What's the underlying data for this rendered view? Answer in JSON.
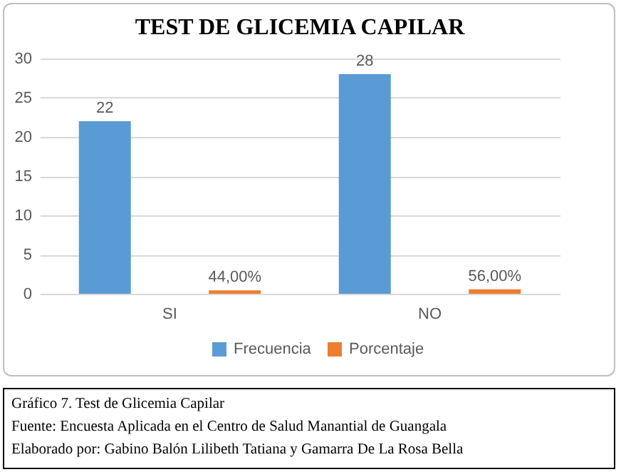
{
  "chart_data": {
    "type": "bar",
    "title": "TEST DE GLICEMIA CAPILAR",
    "categories": [
      "SI",
      "NO"
    ],
    "series": [
      {
        "name": "Frecuencia",
        "color": "#5b9bd5",
        "values": [
          22,
          28
        ],
        "value_labels": [
          "22",
          "28"
        ]
      },
      {
        "name": "Porcentaje",
        "color": "#ed7d31",
        "values": [
          0.44,
          0.56
        ],
        "value_labels": [
          "44,00%",
          "56,00%"
        ]
      }
    ],
    "ylim": [
      0,
      30
    ],
    "yticks": [
      0,
      5,
      10,
      15,
      20,
      25,
      30
    ],
    "grid": "y",
    "legend": "bottom",
    "annotations": [
      "Gráfico 7. Test de Glicemia Capilar",
      "Fuente: Encuesta Aplicada en el Centro de Salud Manantial de Guangala",
      "Elaborado por: Gabino Balón Lilibeth Tatiana y Gamarra De La Rosa Bella"
    ]
  }
}
